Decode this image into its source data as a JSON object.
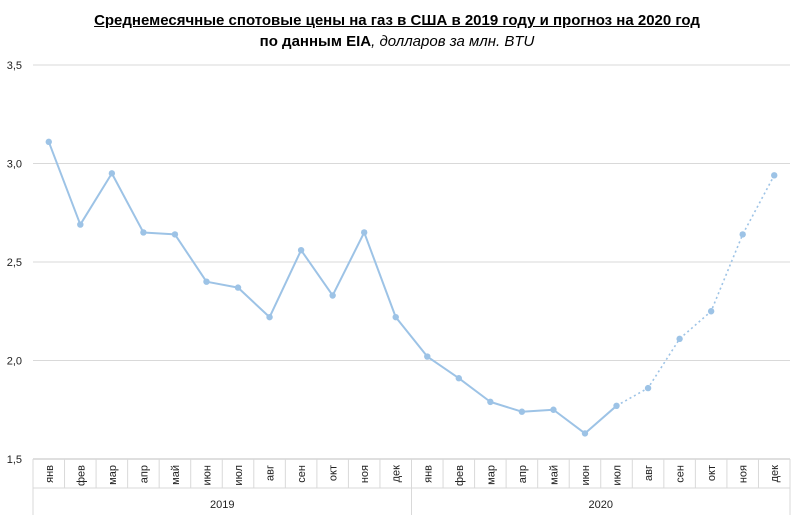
{
  "chart_data": {
    "type": "line",
    "title": "Среднемесячные  спотовые цены на газ в США в 2019 году и прогноз на 2020 год",
    "subtitle_bold": "по данным  EIA",
    "subtitle_unit": ", долларов за млн. BTU",
    "xlabel": "",
    "ylabel": "",
    "ylim": [
      1.5,
      3.5
    ],
    "yticks": [
      "1,5",
      "2,0",
      "2,5",
      "3,0",
      "3,5"
    ],
    "ytick_values": [
      1.5,
      2.0,
      2.5,
      3.0,
      3.5
    ],
    "grid": true,
    "legend": "none",
    "categories": [
      "янв",
      "фев",
      "мар",
      "апр",
      "май",
      "июн",
      "июл",
      "авг",
      "сен",
      "окт",
      "ноя",
      "дек",
      "янв",
      "фев",
      "мар",
      "апр",
      "май",
      "июн",
      "июл",
      "авг",
      "сен",
      "окт",
      "ноя",
      "дек"
    ],
    "groups": [
      {
        "label": "2019",
        "count": 12
      },
      {
        "label": "2020",
        "count": 12
      }
    ],
    "series": [
      {
        "values": [
          3.11,
          2.69,
          2.95,
          2.65,
          2.64,
          2.4,
          2.37,
          2.22,
          2.56,
          2.33,
          2.65,
          2.22,
          2.02,
          1.91,
          1.79,
          1.74,
          1.75,
          1.63,
          1.77,
          1.86,
          2.11,
          2.25,
          2.64,
          2.94
        ],
        "solid_until_index": 18,
        "color": "#9dc3e6"
      }
    ]
  }
}
